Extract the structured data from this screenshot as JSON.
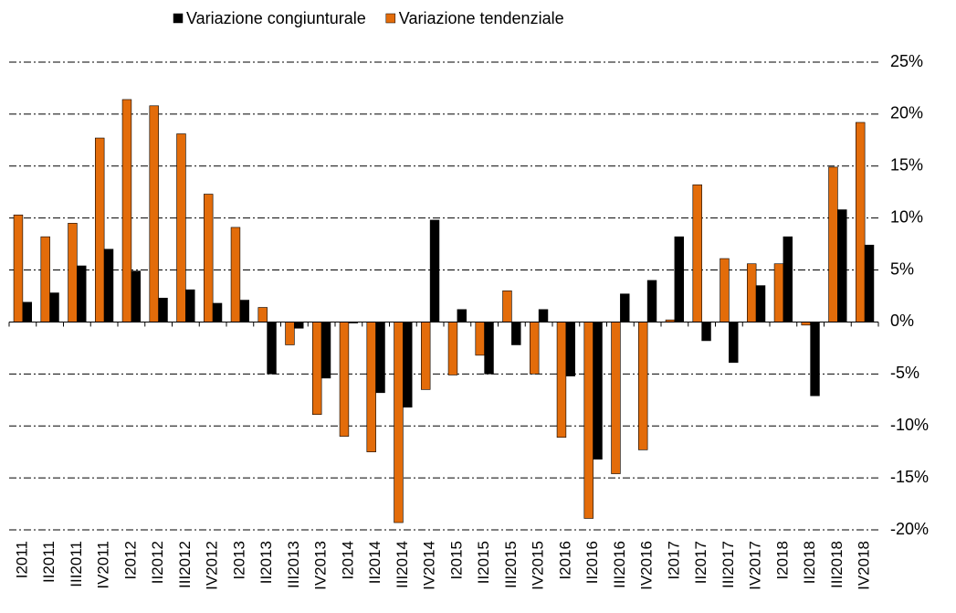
{
  "chart_data": {
    "type": "bar",
    "categories": [
      "I2011",
      "II2011",
      "III2011",
      "IV2011",
      "I2012",
      "II2012",
      "III2012",
      "IV2012",
      "I2013",
      "II2013",
      "III2013",
      "IV2013",
      "I2014",
      "II2014",
      "III2014",
      "IV2014",
      "I2015",
      "II2015",
      "III2015",
      "IV2015",
      "I2016",
      "II2016",
      "III2016",
      "IV2016",
      "I2017",
      "II2017",
      "III2017",
      "IV2017",
      "I2018",
      "II2018",
      "III2018",
      "IV2018"
    ],
    "series": [
      {
        "name": "Variazione congiunturale",
        "color": "#000000",
        "values": [
          1.9,
          2.8,
          5.4,
          7.0,
          4.9,
          2.3,
          3.1,
          1.8,
          2.1,
          -5.0,
          -0.6,
          -5.4,
          -0.1,
          -6.8,
          -8.2,
          9.8,
          1.2,
          -5.0,
          -2.2,
          1.2,
          -5.2,
          -13.2,
          2.7,
          4.0,
          8.2,
          -1.8,
          -3.9,
          3.5,
          8.2,
          -7.1,
          10.8,
          7.4
        ]
      },
      {
        "name": "Variazione tendenziale",
        "color": "#e36c0a",
        "values": [
          10.3,
          8.2,
          9.5,
          17.7,
          21.4,
          20.8,
          18.1,
          12.3,
          9.1,
          1.4,
          -2.2,
          -8.9,
          -11.0,
          -12.5,
          -19.3,
          -6.5,
          -5.1,
          -3.2,
          3.0,
          -5.0,
          -11.1,
          -18.9,
          -14.6,
          -12.3,
          0.2,
          13.2,
          6.1,
          5.6,
          5.6,
          -0.3,
          14.9,
          19.2
        ]
      }
    ],
    "ylim": [
      -20,
      25
    ],
    "yticks": [
      {
        "value": -20,
        "label": "-20%"
      },
      {
        "value": -15,
        "label": "-15%"
      },
      {
        "value": -10,
        "label": "-10%"
      },
      {
        "value": -5,
        "label": "-5%"
      },
      {
        "value": 0,
        "label": "0%"
      },
      {
        "value": 5,
        "label": "5%"
      },
      {
        "value": 10,
        "label": "10%"
      },
      {
        "value": 15,
        "label": "15%"
      },
      {
        "value": 20,
        "label": "20%"
      },
      {
        "value": 25,
        "label": "25%"
      }
    ],
    "grid": true,
    "legend": "top"
  }
}
